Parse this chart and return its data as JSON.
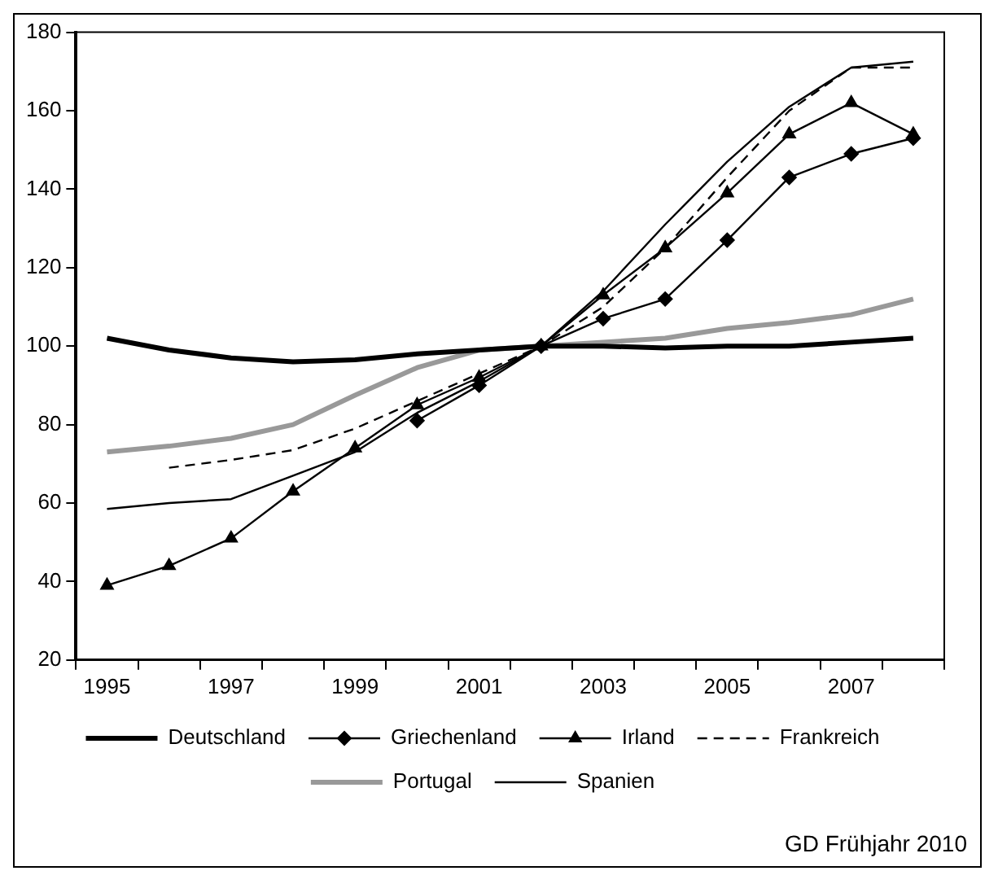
{
  "chart_data": {
    "type": "line",
    "categories": [
      "1995",
      null,
      "1997",
      null,
      "1999",
      null,
      "2001",
      null,
      "2003",
      null,
      "2005",
      null,
      "2007",
      null
    ],
    "series": [
      {
        "name": "Deutschland",
        "color": "#000000",
        "marker": "none",
        "line_style": "solid",
        "values": [
          102,
          99,
          97,
          96,
          96.5,
          98,
          99,
          100,
          100,
          99.5,
          100,
          100,
          101,
          102
        ]
      },
      {
        "name": "Griechenland",
        "color": "#000000",
        "marker": "diamond",
        "line_style": "solid",
        "values": [
          null,
          null,
          null,
          null,
          null,
          81,
          90,
          100,
          107,
          112,
          127,
          143,
          149,
          153
        ]
      },
      {
        "name": "Irland",
        "color": "#000000",
        "marker": "triangle",
        "line_style": "solid",
        "values": [
          39,
          44,
          51,
          63,
          74,
          85,
          92,
          100,
          113,
          125,
          139,
          154,
          162,
          154
        ]
      },
      {
        "name": "Frankreich",
        "color": "#000000",
        "marker": "none",
        "line_style": "dashed",
        "values": [
          null,
          69,
          71,
          73.5,
          79,
          86,
          93,
          100,
          110,
          125,
          143,
          160,
          171,
          171
        ]
      },
      {
        "name": "Portugal",
        "color": "#999999",
        "marker": "none",
        "line_style": "solid",
        "values": [
          73,
          74.5,
          76.5,
          80,
          87.5,
          94.5,
          99,
          100,
          101,
          102,
          104.5,
          106,
          108,
          112
        ]
      },
      {
        "name": "Spanien",
        "color": "#000000",
        "marker": "none",
        "line_style": "solid",
        "values": [
          58.5,
          60,
          61,
          67,
          73,
          83,
          91,
          100,
          114,
          131,
          147,
          161,
          171,
          172.5
        ]
      }
    ],
    "ylim": [
      20,
      180
    ],
    "yticks": [
      20,
      40,
      60,
      80,
      100,
      120,
      140,
      160,
      180
    ],
    "grid": false,
    "legend": "bottom",
    "annotations": [
      "GD Frühjahr 2010"
    ]
  }
}
